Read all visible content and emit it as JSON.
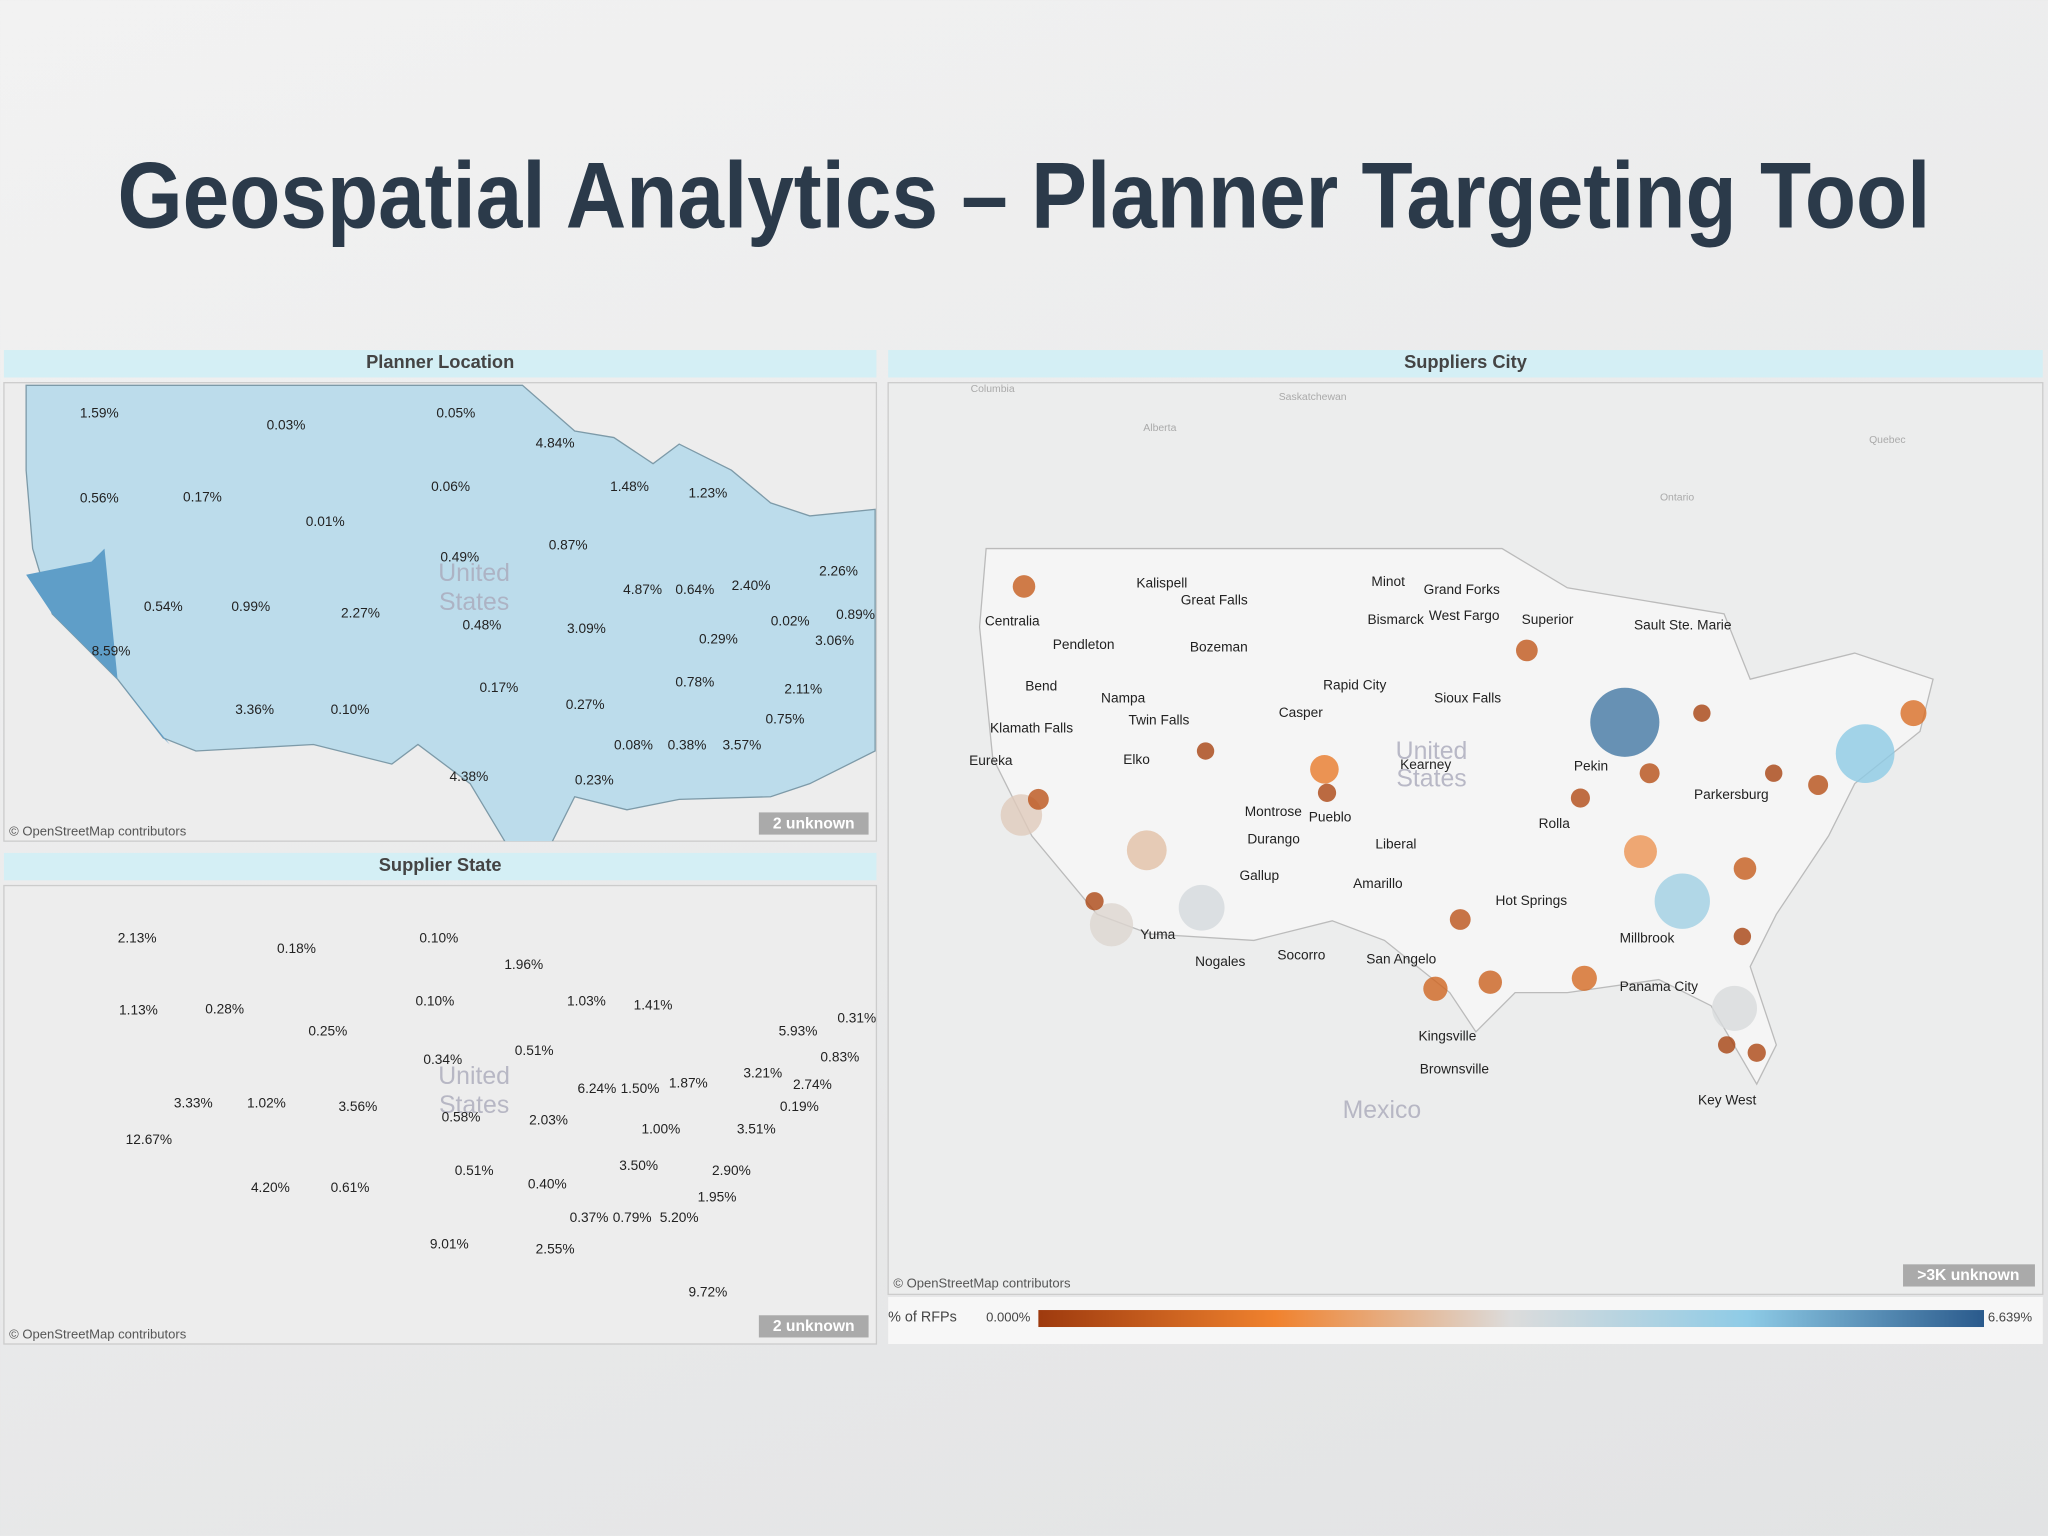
{
  "title": "Geospatial Analytics – Planner Targeting Tool",
  "planner_location": {
    "header": "Planner Location",
    "watermark": [
      "United",
      "States"
    ],
    "labels": [
      "1.59%",
      "0.03%",
      "0.05%",
      "4.84%",
      "1.48%",
      "1.23%",
      "0.56%",
      "0.17%",
      "0.06%",
      "0.01%",
      "0.87%",
      "0.49%",
      "2.26%",
      "4.87%",
      "0.64%",
      "2.40%",
      "0.54%",
      "0.99%",
      "2.27%",
      "0.48%",
      "3.09%",
      "0.02%",
      "0.89%",
      "3.06%",
      "0.29%",
      "8.59%",
      "0.78%",
      "2.11%",
      "0.17%",
      "0.27%",
      "0.75%",
      "3.36%",
      "0.10%",
      "0.08%",
      "0.38%",
      "3.57%",
      "4.38%",
      "0.23%"
    ],
    "attribution": "© OpenStreetMap contributors",
    "unknown": "2 unknown"
  },
  "supplier_state": {
    "header": "Supplier State",
    "watermark": [
      "United",
      "States"
    ],
    "labels": [
      "2.13%",
      "0.18%",
      "0.10%",
      "1.96%",
      "0.10%",
      "1.03%",
      "1.41%",
      "1.13%",
      "0.28%",
      "0.25%",
      "0.31%",
      "5.93%",
      "0.51%",
      "0.34%",
      "0.83%",
      "3.21%",
      "6.24%",
      "1.50%",
      "1.87%",
      "2.74%",
      "3.33%",
      "1.02%",
      "3.56%",
      "0.19%",
      "0.58%",
      "2.03%",
      "1.00%",
      "3.51%",
      "12.67%",
      "0.51%",
      "3.50%",
      "2.90%",
      "0.40%",
      "4.20%",
      "0.61%",
      "1.95%",
      "0.37%",
      "0.79%",
      "5.20%",
      "9.01%",
      "2.55%",
      "9.72%"
    ],
    "attribution": "© OpenStreetMap contributors",
    "unknown": "2 unknown"
  },
  "suppliers_city": {
    "header": "Suppliers City",
    "regions": [
      "Columbia",
      "Saskatchewan",
      "Alberta",
      "Ontario",
      "Quebec"
    ],
    "country_labels": [
      "United",
      "States",
      "Mexico"
    ],
    "cities": [
      "Kalispell",
      "Great Falls",
      "Minot",
      "Grand Forks",
      "Bismarck",
      "West Fargo",
      "Superior",
      "Sault Ste. Marie",
      "Centralia",
      "Pendleton",
      "Bozeman",
      "Bend",
      "Rapid City",
      "Sioux Falls",
      "Nampa",
      "Casper",
      "Twin Falls",
      "Klamath Falls",
      "Kearney",
      "Eureka",
      "Elko",
      "Pekin",
      "Parkersburg",
      "Montrose",
      "Pueblo",
      "Rolla",
      "Durango",
      "Liberal",
      "Gallup",
      "Amarillo",
      "Hot Springs",
      "Yuma",
      "Millbrook",
      "Nogales",
      "Socorro",
      "San Angelo",
      "Panama City",
      "Kingsville",
      "Brownsville",
      "Key West"
    ],
    "bubbles": [
      6.2,
      5.0,
      4.6,
      2.8,
      3.5,
      3.2,
      3.0,
      3.4,
      2.0,
      1.2,
      1.5,
      0.8,
      0.7,
      0.6,
      0.9,
      1.0,
      1.1,
      0.8,
      0.5,
      0.3,
      0.2,
      0.3,
      0.6,
      0.3,
      0.2,
      0.4,
      0.5,
      0.2,
      0.2,
      0.2
    ],
    "attribution": "© OpenStreetMap contributors",
    "unknown": ">3K unknown",
    "legend": {
      "title": "% of RFPs",
      "range": [
        {
          "value": 0,
          "label": "0.000%"
        },
        {
          "value": 6.639,
          "label": "6.639%"
        }
      ],
      "colors": [
        "#9e3a0e",
        "#f0822e",
        "#dcdcdc",
        "#8ecbe6",
        "#2a5a8c"
      ]
    }
  }
}
